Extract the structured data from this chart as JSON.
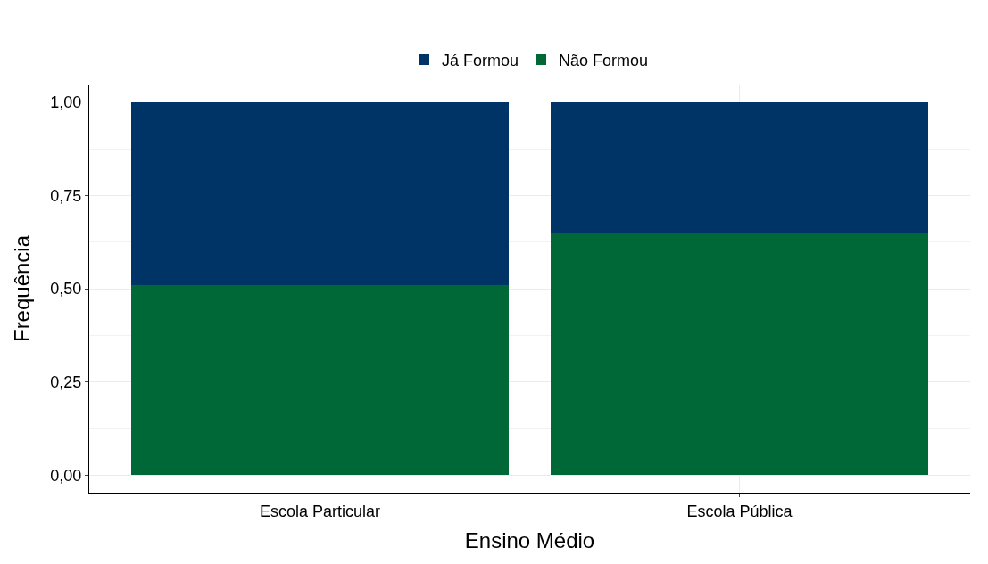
{
  "chart_data": {
    "type": "bar",
    "xlabel": "Ensino Médio",
    "ylabel": "Frequência",
    "categories": [
      "Escola Particular",
      "Escola Pública"
    ],
    "series": [
      {
        "name": "Não Formou",
        "color": "#006837",
        "values": [
          0.51,
          0.65
        ]
      },
      {
        "name": "Já Formou",
        "color": "#003366",
        "values": [
          0.49,
          0.35
        ]
      }
    ],
    "stacked": true,
    "ylim": [
      -0.047,
      1.047
    ],
    "yticks": [
      {
        "value": 0,
        "label": "0,00"
      },
      {
        "value": 0.25,
        "label": "0,25"
      },
      {
        "value": 0.5,
        "label": "0,50"
      },
      {
        "value": 0.75,
        "label": "0,75"
      },
      {
        "value": 1,
        "label": "1,00"
      }
    ],
    "grid": true,
    "legend": "top"
  }
}
